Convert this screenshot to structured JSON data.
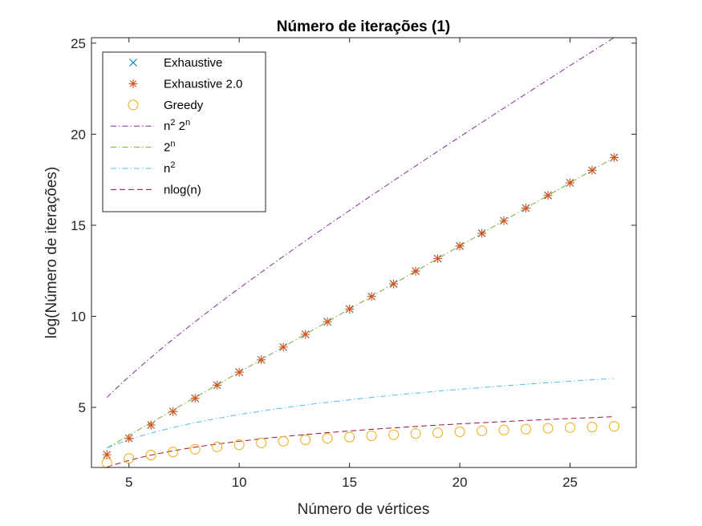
{
  "chart_data": {
    "type": "line",
    "title": "Número de iterações (1)",
    "xlabel": "Número de vértices",
    "ylabel": "log(Número de iterações)",
    "xlim": [
      3.3,
      28
    ],
    "ylim": [
      1.7,
      25.3
    ],
    "xticks": [
      5,
      10,
      15,
      20,
      25
    ],
    "yticks": [
      5,
      10,
      15,
      20,
      25
    ],
    "legend_position": "top-left",
    "x": [
      4,
      5,
      6,
      7,
      8,
      9,
      10,
      11,
      12,
      13,
      14,
      15,
      16,
      17,
      18,
      19,
      20,
      21,
      22,
      23,
      24,
      25,
      26,
      27
    ],
    "series": [
      {
        "name": "Exhaustive",
        "legend_text": "Exhaustive",
        "marker": "x",
        "color": "#0072BD",
        "values": [
          2.4,
          3.3,
          4.03,
          4.77,
          5.5,
          6.22,
          6.93,
          7.61,
          8.31,
          9.01,
          9.7,
          10.4,
          11.09,
          11.78,
          12.48,
          13.17,
          13.86,
          14.56,
          15.25,
          15.94,
          16.64,
          17.33,
          18.02,
          18.72
        ]
      },
      {
        "name": "Exhaustive 2.0",
        "legend_text": "Exhaustive 2.0",
        "marker": "asterisk",
        "color": "#D95319",
        "values": [
          2.4,
          3.3,
          4.03,
          4.77,
          5.5,
          6.22,
          6.93,
          7.61,
          8.31,
          9.01,
          9.7,
          10.4,
          11.09,
          11.78,
          12.48,
          13.17,
          13.86,
          14.56,
          15.25,
          15.94,
          16.64,
          17.33,
          18.02,
          18.72
        ]
      },
      {
        "name": "Greedy",
        "legend_text": "Greedy",
        "marker": "circle",
        "color": "#EDB120",
        "values": [
          1.95,
          2.2,
          2.38,
          2.55,
          2.7,
          2.83,
          2.95,
          3.05,
          3.14,
          3.22,
          3.3,
          3.37,
          3.44,
          3.5,
          3.56,
          3.61,
          3.66,
          3.71,
          3.76,
          3.8,
          3.85,
          3.89,
          3.92,
          3.96
        ]
      },
      {
        "name": "n^2 2^n",
        "legend_base": "n",
        "legend_sup": "2",
        "legend_base2": " 2",
        "legend_sup2": "n",
        "line": "dashdot",
        "color": "#7E2F8E",
        "fn": "n2_2n"
      },
      {
        "name": "2^n",
        "legend_base": "2",
        "legend_sup": "n",
        "line": "dashdot",
        "color": "#77AC30",
        "fn": "2n"
      },
      {
        "name": "n^2",
        "legend_base": "n",
        "legend_sup": "2",
        "line": "dashdot",
        "color": "#4DBEEE",
        "fn": "n2"
      },
      {
        "name": "nlog(n)",
        "legend_text": "nlog(n)",
        "line": "dashed",
        "color": "#A2142F",
        "fn": "nlogn"
      }
    ]
  }
}
